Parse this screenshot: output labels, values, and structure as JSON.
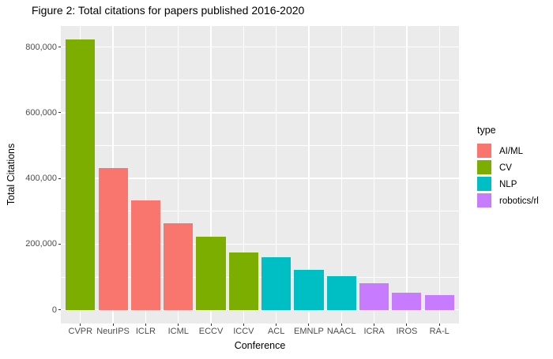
{
  "title": "Figure 2: Total citations for papers published 2016-2020",
  "chart_data": {
    "type": "bar",
    "title": "Figure 2: Total citations for papers published 2016-2020",
    "xlabel": "Conference",
    "ylabel": "Total Citations",
    "categories": [
      "CVPR",
      "NeurIPS",
      "ICLR",
      "ICML",
      "ECCV",
      "ICCV",
      "ACL",
      "EMNLP",
      "NAACL",
      "ICRA",
      "IROS",
      "RA-L"
    ],
    "values": [
      824000,
      431000,
      334000,
      264000,
      222000,
      174000,
      161000,
      122000,
      101000,
      81000,
      52000,
      44000
    ],
    "bar_types": [
      "CV",
      "AI/ML",
      "AI/ML",
      "AI/ML",
      "CV",
      "CV",
      "NLP",
      "NLP",
      "NLP",
      "robotics/rl",
      "robotics/rl",
      "robotics/rl"
    ],
    "type_colors": {
      "AI/ML": "#F8766D",
      "CV": "#7CAE00",
      "NLP": "#00BFC4",
      "robotics/rl": "#C77CFF"
    },
    "legend": {
      "title": "type",
      "position": "right",
      "entries": [
        {
          "label": "AI/ML",
          "color": "#F8766D"
        },
        {
          "label": "CV",
          "color": "#7CAE00"
        },
        {
          "label": "NLP",
          "color": "#00BFC4"
        },
        {
          "label": "robotics/rl",
          "color": "#C77CFF"
        }
      ]
    },
    "y_axis": {
      "tick_values": [
        0,
        200000,
        400000,
        600000,
        800000
      ],
      "tick_labels": [
        "0",
        "200,000",
        "400,000",
        "600,000",
        "800,000"
      ]
    },
    "ylim": [
      0,
      864000
    ],
    "grid": "major-and-minor-horizontal-white, major-vertical-white-at-category-centers",
    "panel_background": "#EBEBEB",
    "gridline_color": "#FFFFFF",
    "tick_label_color": "#4D4D4D",
    "tick_mark_color": "#333333"
  }
}
